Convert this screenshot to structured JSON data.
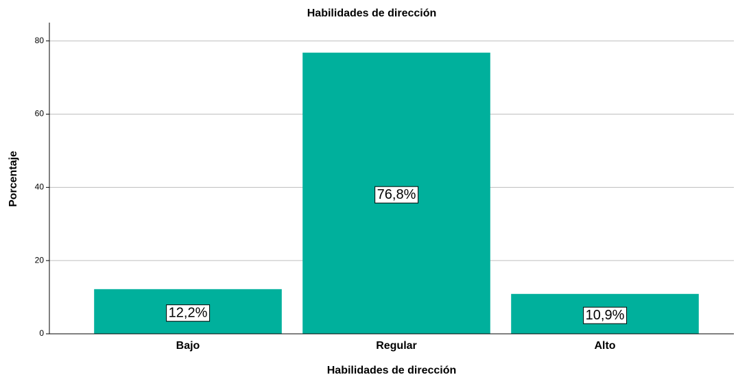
{
  "chart_data": {
    "type": "bar",
    "title": "Habilidades de dirección",
    "xlabel": "Habilidades de dirección",
    "ylabel": "Porcentaje",
    "categories": [
      "Bajo",
      "Regular",
      "Alto"
    ],
    "values": [
      12.2,
      76.8,
      10.9
    ],
    "value_labels": [
      "12,2%",
      "76,8%",
      "10,9%"
    ],
    "color": "#00b09c",
    "ylim": [
      0,
      85
    ],
    "yticks": [
      0,
      20,
      40,
      60,
      80
    ],
    "grid": true
  }
}
